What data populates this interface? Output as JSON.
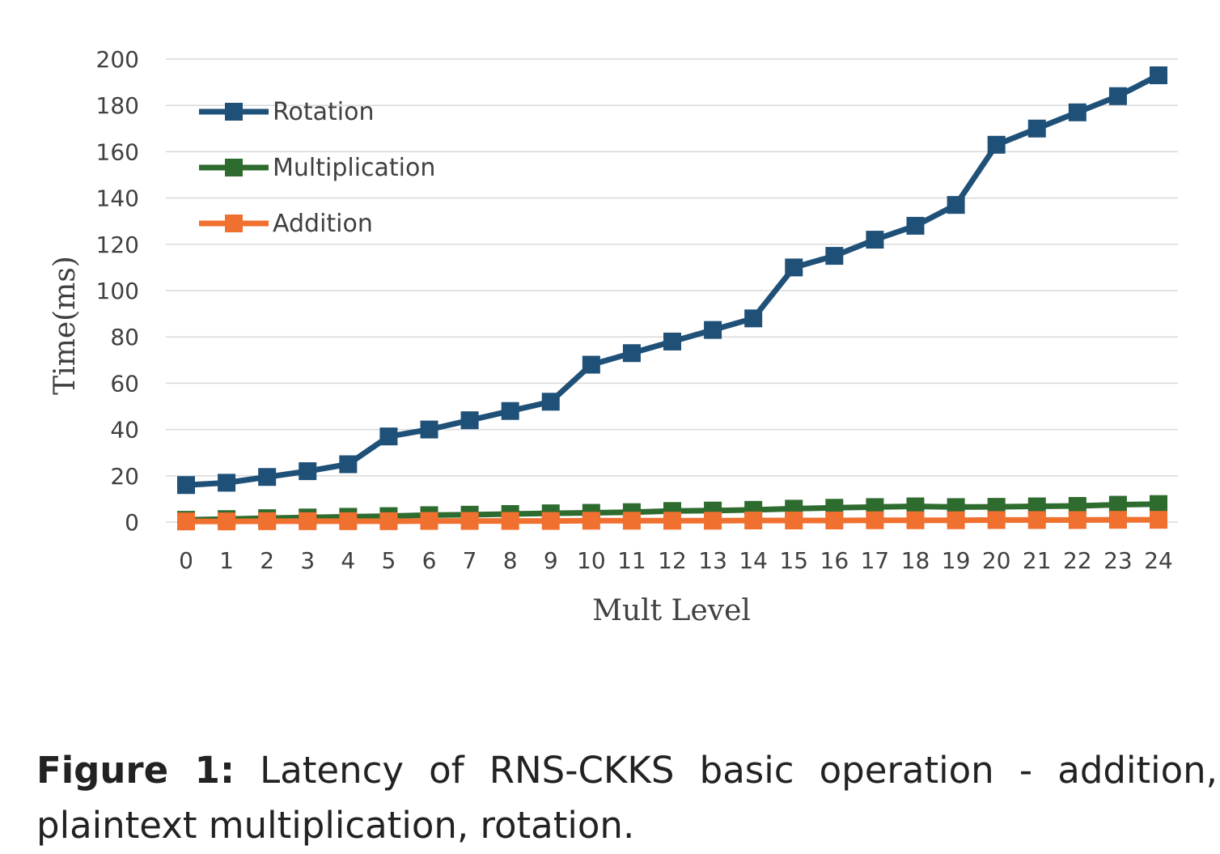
{
  "chart_data": {
    "type": "line",
    "xlabel": "Mult Level",
    "ylabel": "Time(ms)",
    "ylim": [
      0,
      200
    ],
    "ytick_step": 20,
    "grid": "horizontal",
    "legend_position": "top-left",
    "x": [
      0,
      1,
      2,
      3,
      4,
      5,
      6,
      7,
      8,
      9,
      10,
      11,
      12,
      13,
      14,
      15,
      16,
      17,
      18,
      19,
      20,
      21,
      22,
      23,
      24
    ],
    "series": [
      {
        "name": "Rotation",
        "color": "#1f5078",
        "values": [
          16,
          17,
          19.5,
          22,
          25,
          37,
          40,
          44,
          48,
          52,
          68,
          73,
          78,
          83,
          88,
          110,
          115,
          122,
          128,
          137,
          163,
          170,
          177,
          184,
          193
        ]
      },
      {
        "name": "Multiplication",
        "color": "#2e6b2e",
        "values": [
          1,
          1.3,
          1.7,
          2,
          2.3,
          2.6,
          3,
          3.2,
          3.5,
          3.8,
          4,
          4.3,
          4.8,
          5,
          5.3,
          5.8,
          6.2,
          6.5,
          6.8,
          6.5,
          6.6,
          6.8,
          7,
          7.5,
          7.8
        ]
      },
      {
        "name": "Addition",
        "color": "#f07030",
        "values": [
          0.3,
          0.3,
          0.4,
          0.4,
          0.4,
          0.4,
          0.5,
          0.5,
          0.5,
          0.5,
          0.6,
          0.6,
          0.6,
          0.6,
          0.7,
          0.7,
          0.7,
          0.8,
          0.8,
          0.8,
          0.9,
          0.9,
          0.9,
          1.0,
          1.0
        ]
      }
    ]
  },
  "caption": {
    "label": "Figure 1:",
    "text": "Latency of RNS-CKKS basic operation - addition, plaintext multiplication, rotation."
  }
}
